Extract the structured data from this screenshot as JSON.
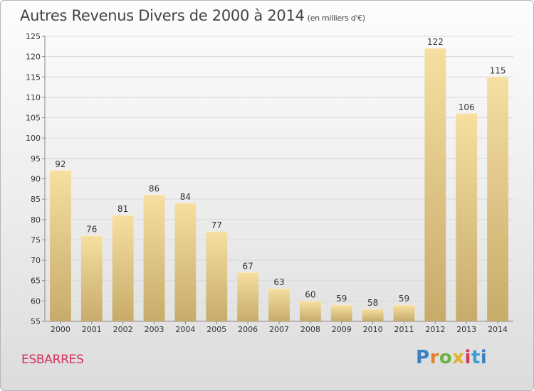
{
  "header": {
    "title": "Autres Revenus Divers de 2000 à 2014",
    "subtitle": "(en milliers d'€)"
  },
  "footer": {
    "commune": "ESBARRES",
    "logo_letters": [
      "P",
      "r",
      "o",
      "x",
      "i",
      "t",
      "i"
    ]
  },
  "colors": {
    "bar_top": "#f6dfa0",
    "bar_bottom": "#c7ab6a",
    "grid": "#d9d9d9",
    "axis": "#8a8a8a",
    "title": "#444444",
    "commune": "#d2305a"
  },
  "chart_data": {
    "type": "bar",
    "title": "Autres Revenus Divers de 2000 à 2014",
    "subtitle": "(en milliers d'€)",
    "xlabel": "",
    "ylabel": "",
    "categories": [
      "2000",
      "2001",
      "2002",
      "2003",
      "2004",
      "2005",
      "2006",
      "2007",
      "2008",
      "2009",
      "2010",
      "2011",
      "2012",
      "2013",
      "2014"
    ],
    "values": [
      92,
      76,
      81,
      86,
      84,
      77,
      67,
      63,
      60,
      59,
      58,
      59,
      122,
      106,
      115
    ],
    "ylim": [
      55,
      125
    ],
    "yticks": [
      55,
      60,
      65,
      70,
      75,
      80,
      85,
      90,
      95,
      100,
      105,
      110,
      115,
      120,
      125
    ],
    "grid": true,
    "data_labels": true,
    "legend": "none"
  }
}
